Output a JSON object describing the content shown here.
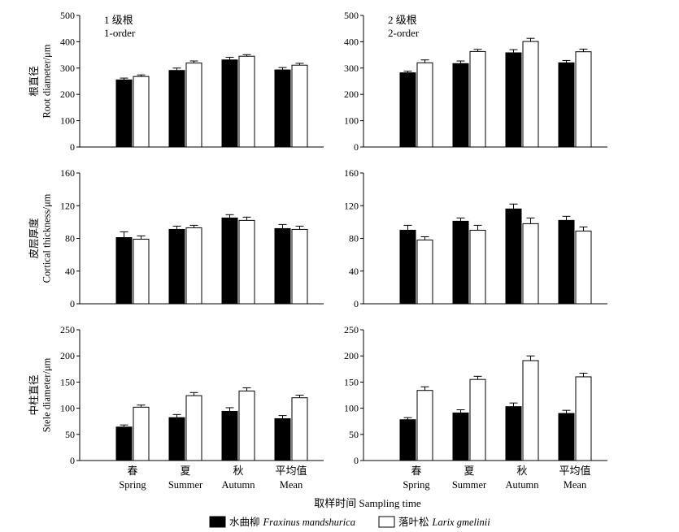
{
  "chart_data": {
    "type": "bar",
    "xlabel": "取样时间  Sampling time",
    "categories": [
      {
        "zh": "春",
        "en": "Spring"
      },
      {
        "zh": "夏",
        "en": "Summer"
      },
      {
        "zh": "秋",
        "en": "Autumn"
      },
      {
        "zh": "平均值",
        "en": "Mean"
      }
    ],
    "legend": {
      "position": "bottom-center",
      "series": [
        {
          "name_zh": "水曲柳",
          "name_latin": "Fraxinus mandshurica",
          "color": "#000000"
        },
        {
          "name_zh": "落叶松",
          "name_latin": "Larix gmelinii",
          "color": "#ffffff"
        }
      ]
    },
    "columns": [
      {
        "label_line1": "1 级根",
        "label_line2": "1-order"
      },
      {
        "label_line1": "2 级根",
        "label_line2": "2-order"
      }
    ],
    "rows": [
      {
        "ylabel_zh": "根直径",
        "ylabel_en": "Root diameter/μm",
        "ylim": [
          0,
          500
        ],
        "yticks": [
          0,
          100,
          200,
          300,
          400,
          500
        ],
        "panels": [
          {
            "order": "1-order",
            "series": [
              {
                "name": "Fraxinus mandshurica",
                "values": [
                  255,
                  291,
                  331,
                  293
                ],
                "errors": [
                  7,
                  9,
                  10,
                  9
                ]
              },
              {
                "name": "Larix gmelinii",
                "values": [
                  268,
                  319,
                  345,
                  311
                ],
                "errors": [
                  6,
                  8,
                  6,
                  7
                ]
              }
            ]
          },
          {
            "order": "2-order",
            "series": [
              {
                "name": "Fraxinus mandshurica",
                "values": [
                  282,
                  317,
                  358,
                  320
                ],
                "errors": [
                  6,
                  10,
                  12,
                  9
                ]
              },
              {
                "name": "Larix gmelinii",
                "values": [
                  320,
                  363,
                  401,
                  362
                ],
                "errors": [
                  11,
                  8,
                  12,
                  10
                ]
              }
            ]
          }
        ]
      },
      {
        "ylabel_zh": "皮层厚度",
        "ylabel_en": "Cortical thickness/μm",
        "ylim": [
          0,
          160
        ],
        "yticks": [
          0,
          40,
          80,
          120,
          160
        ],
        "panels": [
          {
            "order": "1-order",
            "series": [
              {
                "name": "Fraxinus mandshurica",
                "values": [
                  81,
                  91,
                  105,
                  92
                ],
                "errors": [
                  7,
                  4,
                  4,
                  5
                ]
              },
              {
                "name": "Larix gmelinii",
                "values": [
                  79,
                  93,
                  102,
                  91
                ],
                "errors": [
                  4,
                  3,
                  4,
                  4
                ]
              }
            ]
          },
          {
            "order": "2-order",
            "series": [
              {
                "name": "Fraxinus mandshurica",
                "values": [
                  90,
                  101,
                  116,
                  102
                ],
                "errors": [
                  6,
                  4,
                  6,
                  5
                ]
              },
              {
                "name": "Larix gmelinii",
                "values": [
                  78,
                  90,
                  98,
                  89
                ],
                "errors": [
                  4,
                  6,
                  7,
                  5
                ]
              }
            ]
          }
        ]
      },
      {
        "ylabel_zh": "中柱直径",
        "ylabel_en": "Stele diameter/μm",
        "ylim": [
          0,
          250
        ],
        "yticks": [
          0,
          50,
          100,
          150,
          200,
          250
        ],
        "panels": [
          {
            "order": "1-order",
            "series": [
              {
                "name": "Fraxinus mandshurica",
                "values": [
                  64,
                  82,
                  94,
                  80
                ],
                "errors": [
                  4,
                  6,
                  7,
                  6
                ]
              },
              {
                "name": "Larix gmelinii",
                "values": [
                  102,
                  124,
                  133,
                  120
                ],
                "errors": [
                  4,
                  6,
                  6,
                  5
                ]
              }
            ]
          },
          {
            "order": "2-order",
            "series": [
              {
                "name": "Fraxinus mandshurica",
                "values": [
                  78,
                  91,
                  103,
                  90
                ],
                "errors": [
                  4,
                  6,
                  7,
                  6
                ]
              },
              {
                "name": "Larix gmelinii",
                "values": [
                  134,
                  155,
                  191,
                  160
                ],
                "errors": [
                  7,
                  6,
                  9,
                  7
                ]
              }
            ]
          }
        ]
      }
    ]
  }
}
